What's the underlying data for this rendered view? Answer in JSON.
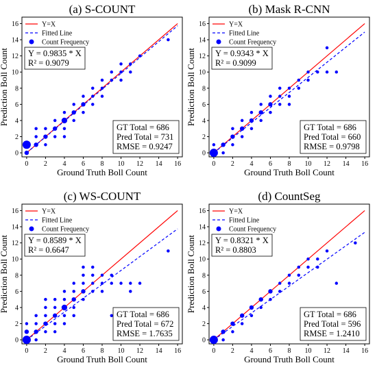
{
  "colors": {
    "identity": "#ff0000",
    "fit": "#0000ff",
    "points": "#0000ff"
  },
  "chart_data": [
    {
      "type": "scatter",
      "title": "(a) S-COUNT",
      "xlabel": "Ground Truth Boll Count",
      "ylabel": "Prediction Boll Count",
      "xlim": [
        -0.5,
        16.5
      ],
      "ylim": [
        -0.5,
        16.8
      ],
      "xticks": [
        0,
        2,
        4,
        6,
        8,
        10,
        12,
        14,
        16
      ],
      "yticks": [
        0,
        2,
        4,
        6,
        8,
        10,
        12,
        14,
        16
      ],
      "legend": [
        "Y=X",
        "Fitted Line",
        "Count Frequency"
      ],
      "slope": 0.9835,
      "equation": "Y = 0.9835 * X",
      "r2": "R² = 0.9079",
      "stats": [
        "GT Total = 686",
        "Pred Total = 731",
        "RMSE = 0.9247"
      ],
      "points": [
        [
          0,
          1,
          5
        ],
        [
          0,
          0,
          2
        ],
        [
          1,
          1,
          2
        ],
        [
          1,
          2,
          1
        ],
        [
          1,
          3,
          1
        ],
        [
          2,
          2,
          2
        ],
        [
          2,
          3,
          1
        ],
        [
          2,
          1,
          1
        ],
        [
          3,
          3,
          2
        ],
        [
          3,
          2,
          1
        ],
        [
          3,
          4,
          1
        ],
        [
          4,
          4,
          3
        ],
        [
          4,
          3,
          1
        ],
        [
          4,
          5,
          1
        ],
        [
          4,
          2,
          1
        ],
        [
          5,
          5,
          2
        ],
        [
          5,
          4,
          1
        ],
        [
          5,
          6,
          1
        ],
        [
          6,
          6,
          2
        ],
        [
          6,
          5,
          1
        ],
        [
          6,
          7,
          1
        ],
        [
          7,
          7,
          1
        ],
        [
          7,
          6,
          1
        ],
        [
          7,
          8,
          1
        ],
        [
          8,
          8,
          1
        ],
        [
          8,
          7,
          1
        ],
        [
          8,
          9,
          1
        ],
        [
          9,
          9,
          1
        ],
        [
          9,
          10,
          1
        ],
        [
          10,
          10,
          1
        ],
        [
          10,
          9,
          1
        ],
        [
          10,
          11,
          1
        ],
        [
          11,
          11,
          1
        ],
        [
          11,
          10,
          1
        ],
        [
          12,
          12,
          1
        ],
        [
          15,
          14,
          1
        ]
      ]
    },
    {
      "type": "scatter",
      "title": "(b) Mask R-CNN",
      "xlabel": "Ground Truth Boll Count",
      "ylabel": "Prediction Boll Count",
      "xlim": [
        -0.5,
        16.5
      ],
      "ylim": [
        -0.5,
        16.8
      ],
      "xticks": [
        0,
        2,
        4,
        6,
        8,
        10,
        12,
        14,
        16
      ],
      "yticks": [
        0,
        2,
        4,
        6,
        8,
        10,
        12,
        14,
        16
      ],
      "legend": [
        "Y=X",
        "Fitted Line",
        "Count Frequency"
      ],
      "slope": 0.9343,
      "equation": "Y = 0.9343 * X",
      "r2": "R² = 0.9099",
      "stats": [
        "GT Total = 686",
        "Pred Total = 660",
        "RMSE = 0.9798"
      ],
      "points": [
        [
          0,
          0,
          5
        ],
        [
          0,
          1,
          1
        ],
        [
          1,
          1,
          2
        ],
        [
          1,
          0,
          1
        ],
        [
          2,
          2,
          2
        ],
        [
          2,
          1,
          1
        ],
        [
          2,
          3,
          1
        ],
        [
          3,
          3,
          2
        ],
        [
          3,
          2,
          1
        ],
        [
          3,
          4,
          1
        ],
        [
          4,
          4,
          2
        ],
        [
          4,
          3,
          1
        ],
        [
          4,
          5,
          1
        ],
        [
          5,
          5,
          2
        ],
        [
          5,
          4,
          1
        ],
        [
          5,
          6,
          1
        ],
        [
          6,
          6,
          2
        ],
        [
          6,
          5,
          1
        ],
        [
          6,
          7,
          1
        ],
        [
          7,
          7,
          1
        ],
        [
          7,
          6,
          1
        ],
        [
          7,
          8,
          1
        ],
        [
          8,
          8,
          1
        ],
        [
          8,
          7,
          1
        ],
        [
          8,
          6,
          1
        ],
        [
          9,
          9,
          1
        ],
        [
          9,
          8,
          1
        ],
        [
          10,
          9,
          1
        ],
        [
          10,
          10,
          1
        ],
        [
          11,
          10,
          1
        ],
        [
          12,
          10,
          1
        ],
        [
          13,
          10,
          1
        ],
        [
          12,
          13,
          1
        ]
      ]
    },
    {
      "type": "scatter",
      "title": "(c) WS-COUNT",
      "xlabel": "Ground Truth Boll Count",
      "ylabel": "Prediction Boll Count",
      "xlim": [
        -0.5,
        16.5
      ],
      "ylim": [
        -0.5,
        16.8
      ],
      "xticks": [
        0,
        2,
        4,
        6,
        8,
        10,
        12,
        14,
        16
      ],
      "yticks": [
        0,
        2,
        4,
        6,
        8,
        10,
        12,
        14,
        16
      ],
      "legend": [
        "Y=X",
        "Fitted Line",
        "Count Frequency"
      ],
      "slope": 0.8589,
      "equation": "Y = 0.8589 * X",
      "r2": "R² = 0.6647",
      "stats": [
        "GT Total = 686",
        "Pred Total = 672",
        "RMSE = 1.7635"
      ],
      "points": [
        [
          0,
          0,
          5
        ],
        [
          0,
          1,
          2
        ],
        [
          0,
          2,
          1
        ],
        [
          1,
          1,
          2
        ],
        [
          1,
          0,
          1
        ],
        [
          1,
          2,
          1
        ],
        [
          1,
          3,
          1
        ],
        [
          2,
          2,
          2
        ],
        [
          2,
          1,
          1
        ],
        [
          2,
          3,
          1
        ],
        [
          2,
          4,
          1
        ],
        [
          2,
          5,
          1
        ],
        [
          3,
          3,
          2
        ],
        [
          3,
          2,
          1
        ],
        [
          3,
          4,
          1
        ],
        [
          3,
          5,
          1
        ],
        [
          3,
          1,
          1
        ],
        [
          4,
          4,
          3
        ],
        [
          4,
          3,
          1
        ],
        [
          4,
          5,
          1
        ],
        [
          4,
          6,
          1
        ],
        [
          4,
          2,
          1
        ],
        [
          5,
          5,
          2
        ],
        [
          5,
          4,
          1
        ],
        [
          5,
          6,
          1
        ],
        [
          5,
          7,
          1
        ],
        [
          5,
          3,
          1
        ],
        [
          6,
          6,
          2
        ],
        [
          6,
          5,
          1
        ],
        [
          6,
          7,
          1
        ],
        [
          6,
          8,
          1
        ],
        [
          6,
          9,
          1
        ],
        [
          7,
          7,
          1
        ],
        [
          7,
          6,
          1
        ],
        [
          7,
          8,
          1
        ],
        [
          7,
          9,
          1
        ],
        [
          8,
          8,
          1
        ],
        [
          8,
          7,
          1
        ],
        [
          8,
          6,
          1
        ],
        [
          9,
          8,
          1
        ],
        [
          9,
          7,
          1
        ],
        [
          9,
          3,
          1
        ],
        [
          10,
          7,
          1
        ],
        [
          11,
          7,
          1
        ],
        [
          11,
          6,
          1
        ],
        [
          12,
          7,
          1
        ],
        [
          15,
          11,
          1
        ]
      ]
    },
    {
      "type": "scatter",
      "title": "(d) CountSeg",
      "xlabel": "Ground Truth Boll Count",
      "ylabel": "Prediction Boll Count",
      "xlim": [
        -0.5,
        16.5
      ],
      "ylim": [
        -0.5,
        16.8
      ],
      "xticks": [
        0,
        2,
        4,
        6,
        8,
        10,
        12,
        14,
        16
      ],
      "yticks": [
        0,
        2,
        4,
        6,
        8,
        10,
        12,
        14,
        16
      ],
      "legend": [
        "Y=X",
        "Fitted Line",
        "Count Frequency"
      ],
      "slope": 0.8321,
      "equation": "Y = 0.8321 * X",
      "r2": "R² = 0.8803",
      "stats": [
        "GT Total = 686",
        "Pred Total = 596",
        "RMSE = 1.2410"
      ],
      "points": [
        [
          0,
          0,
          5
        ],
        [
          1,
          1,
          2
        ],
        [
          1,
          0,
          1
        ],
        [
          2,
          2,
          2
        ],
        [
          2,
          1,
          1
        ],
        [
          3,
          3,
          2
        ],
        [
          3,
          2,
          1
        ],
        [
          4,
          4,
          2
        ],
        [
          4,
          3,
          1
        ],
        [
          5,
          5,
          2
        ],
        [
          5,
          4,
          1
        ],
        [
          6,
          6,
          2
        ],
        [
          6,
          5,
          1
        ],
        [
          7,
          7,
          1
        ],
        [
          7,
          6,
          1
        ],
        [
          8,
          7,
          1
        ],
        [
          8,
          8,
          1
        ],
        [
          9,
          8,
          1
        ],
        [
          9,
          9,
          1
        ],
        [
          10,
          9,
          1
        ],
        [
          10,
          10,
          1
        ],
        [
          11,
          9,
          1
        ],
        [
          11,
          10,
          1
        ],
        [
          12,
          11,
          1
        ],
        [
          13,
          7,
          1
        ],
        [
          15,
          12,
          1
        ]
      ]
    }
  ]
}
